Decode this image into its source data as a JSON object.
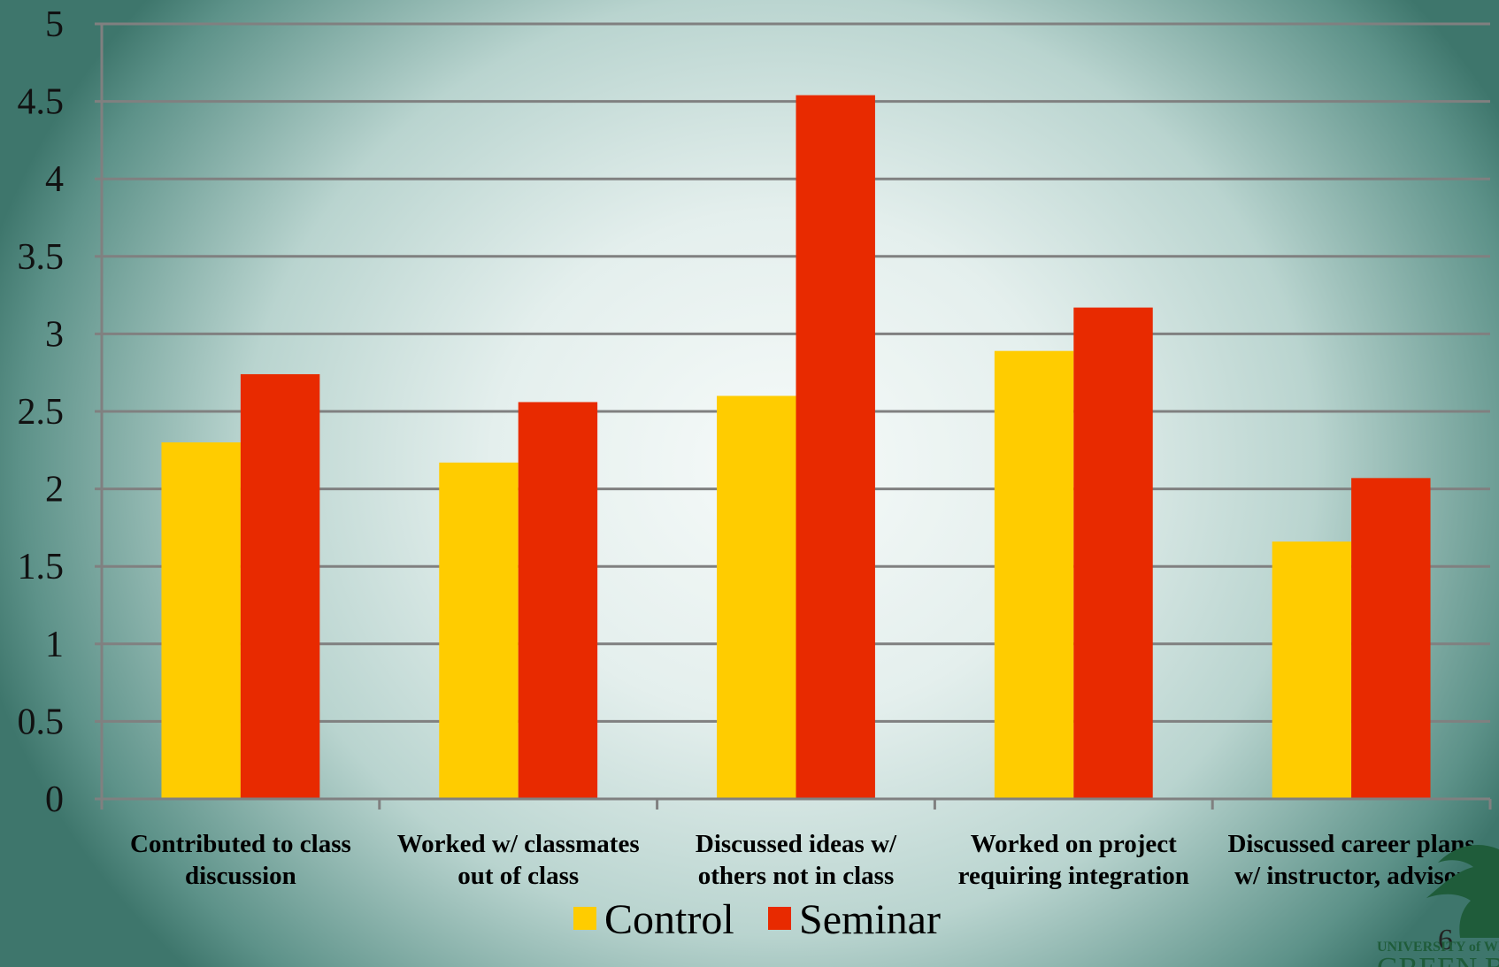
{
  "chart_data": {
    "type": "bar",
    "categories": [
      [
        "Contributed to class",
        "discussion"
      ],
      [
        "Worked w/ classmates",
        "out of class"
      ],
      [
        "Discussed ideas w/",
        "others not in class"
      ],
      [
        "Worked on project",
        "requiring integration"
      ],
      [
        "Discussed career plans",
        "w/ instructor, advisor"
      ]
    ],
    "series": [
      {
        "name": "Control",
        "color": "#FFCC00",
        "values": [
          2.3,
          2.17,
          2.6,
          2.89,
          1.66
        ]
      },
      {
        "name": "Seminar",
        "color": "#E82A00",
        "values": [
          2.74,
          2.56,
          4.54,
          3.17,
          2.07
        ]
      }
    ],
    "ylim": [
      0,
      5
    ],
    "yticks": [
      "0",
      "0.5",
      "1",
      "1.5",
      "2",
      "2.5",
      "3",
      "3.5",
      "4",
      "4.5",
      "5"
    ],
    "grid": true,
    "legend_position": "bottom-center"
  },
  "page_number": "6",
  "logo": {
    "caption": "UNIVERSITY of WISCONSIN",
    "name": "GREEN BAY",
    "color": "#1f5c3a"
  }
}
